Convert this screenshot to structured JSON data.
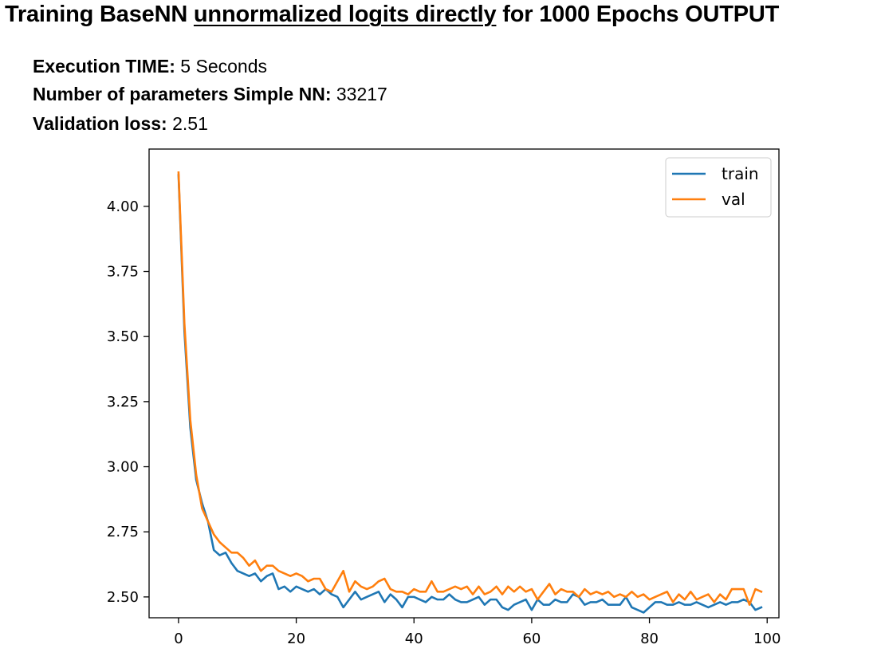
{
  "header": {
    "title_prefix": "Training BaseNN ",
    "title_underlined": "unnormalized logits directly",
    "title_suffix": " for 1000 Epochs OUTPUT"
  },
  "info": {
    "time_label": "Execution TIME:",
    "time_value": "5 Seconds",
    "params_label": "Number of parameters Simple NN:",
    "params_value": "33217",
    "loss_label": "Validation loss:",
    "loss_value": "2.51"
  },
  "colors": {
    "train": "#1f77b4",
    "val": "#ff7f0e",
    "axis": "#000000"
  },
  "chart_data": {
    "type": "line",
    "title": "",
    "xlabel": "",
    "ylabel": "",
    "xlim": [
      -5,
      102
    ],
    "ylim": [
      2.42,
      4.22
    ],
    "xticks": [
      0,
      20,
      40,
      60,
      80,
      100
    ],
    "yticks": [
      2.5,
      2.75,
      3.0,
      3.25,
      3.5,
      3.75,
      4.0
    ],
    "ytick_labels": [
      "2.50",
      "2.75",
      "3.00",
      "3.25",
      "3.50",
      "3.75",
      "4.00"
    ],
    "xtick_labels": [
      "0",
      "20",
      "40",
      "60",
      "80",
      "100"
    ],
    "legend_position": "top-right",
    "grid": false,
    "series": [
      {
        "name": "train",
        "x": [
          0,
          1,
          2,
          3,
          4,
          5,
          6,
          7,
          8,
          9,
          10,
          11,
          12,
          13,
          14,
          15,
          16,
          17,
          18,
          19,
          20,
          21,
          22,
          23,
          24,
          25,
          26,
          27,
          28,
          29,
          30,
          31,
          32,
          33,
          34,
          35,
          36,
          37,
          38,
          39,
          40,
          41,
          42,
          43,
          44,
          45,
          46,
          47,
          48,
          49,
          50,
          51,
          52,
          53,
          54,
          55,
          56,
          57,
          58,
          59,
          60,
          61,
          62,
          63,
          64,
          65,
          66,
          67,
          68,
          69,
          70,
          71,
          72,
          73,
          74,
          75,
          76,
          77,
          78,
          79,
          80,
          81,
          82,
          83,
          84,
          85,
          86,
          87,
          88,
          89,
          90,
          91,
          92,
          93,
          94,
          95,
          96,
          97,
          98,
          99
        ],
        "values": [
          4.12,
          3.52,
          3.15,
          2.95,
          2.86,
          2.79,
          2.68,
          2.66,
          2.67,
          2.63,
          2.6,
          2.59,
          2.58,
          2.59,
          2.56,
          2.58,
          2.59,
          2.53,
          2.54,
          2.52,
          2.54,
          2.53,
          2.52,
          2.53,
          2.51,
          2.53,
          2.51,
          2.5,
          2.46,
          2.49,
          2.52,
          2.49,
          2.5,
          2.51,
          2.52,
          2.48,
          2.51,
          2.49,
          2.46,
          2.5,
          2.5,
          2.49,
          2.48,
          2.5,
          2.49,
          2.49,
          2.51,
          2.49,
          2.48,
          2.48,
          2.49,
          2.5,
          2.47,
          2.49,
          2.49,
          2.46,
          2.45,
          2.47,
          2.48,
          2.49,
          2.45,
          2.49,
          2.47,
          2.47,
          2.49,
          2.48,
          2.48,
          2.51,
          2.5,
          2.47,
          2.48,
          2.48,
          2.49,
          2.47,
          2.47,
          2.47,
          2.5,
          2.46,
          2.45,
          2.44,
          2.46,
          2.48,
          2.48,
          2.47,
          2.47,
          2.48,
          2.47,
          2.47,
          2.48,
          2.47,
          2.46,
          2.47,
          2.48,
          2.47,
          2.48,
          2.48,
          2.49,
          2.48,
          2.45,
          2.46
        ]
      },
      {
        "name": "val",
        "x": [
          0,
          1,
          2,
          3,
          4,
          5,
          6,
          7,
          8,
          9,
          10,
          11,
          12,
          13,
          14,
          15,
          16,
          17,
          18,
          19,
          20,
          21,
          22,
          23,
          24,
          25,
          26,
          27,
          28,
          29,
          30,
          31,
          32,
          33,
          34,
          35,
          36,
          37,
          38,
          39,
          40,
          41,
          42,
          43,
          44,
          45,
          46,
          47,
          48,
          49,
          50,
          51,
          52,
          53,
          54,
          55,
          56,
          57,
          58,
          59,
          60,
          61,
          62,
          63,
          64,
          65,
          66,
          67,
          68,
          69,
          70,
          71,
          72,
          73,
          74,
          75,
          76,
          77,
          78,
          79,
          80,
          81,
          82,
          83,
          84,
          85,
          86,
          87,
          88,
          89,
          90,
          91,
          92,
          93,
          94,
          95,
          96,
          97,
          98,
          99
        ],
        "values": [
          4.13,
          3.55,
          3.18,
          2.97,
          2.84,
          2.79,
          2.74,
          2.71,
          2.69,
          2.67,
          2.67,
          2.65,
          2.62,
          2.64,
          2.6,
          2.62,
          2.62,
          2.6,
          2.59,
          2.58,
          2.59,
          2.58,
          2.56,
          2.57,
          2.57,
          2.53,
          2.52,
          2.56,
          2.6,
          2.52,
          2.56,
          2.54,
          2.53,
          2.54,
          2.56,
          2.57,
          2.53,
          2.52,
          2.52,
          2.51,
          2.53,
          2.52,
          2.52,
          2.56,
          2.52,
          2.52,
          2.53,
          2.54,
          2.53,
          2.54,
          2.51,
          2.54,
          2.51,
          2.52,
          2.54,
          2.51,
          2.54,
          2.52,
          2.54,
          2.52,
          2.53,
          2.49,
          2.52,
          2.55,
          2.51,
          2.53,
          2.52,
          2.52,
          2.5,
          2.53,
          2.51,
          2.52,
          2.51,
          2.52,
          2.5,
          2.51,
          2.5,
          2.52,
          2.5,
          2.51,
          2.49,
          2.5,
          2.51,
          2.52,
          2.48,
          2.51,
          2.49,
          2.52,
          2.49,
          2.5,
          2.51,
          2.48,
          2.51,
          2.49,
          2.53,
          2.53,
          2.53,
          2.47,
          2.53,
          2.52
        ]
      }
    ]
  }
}
